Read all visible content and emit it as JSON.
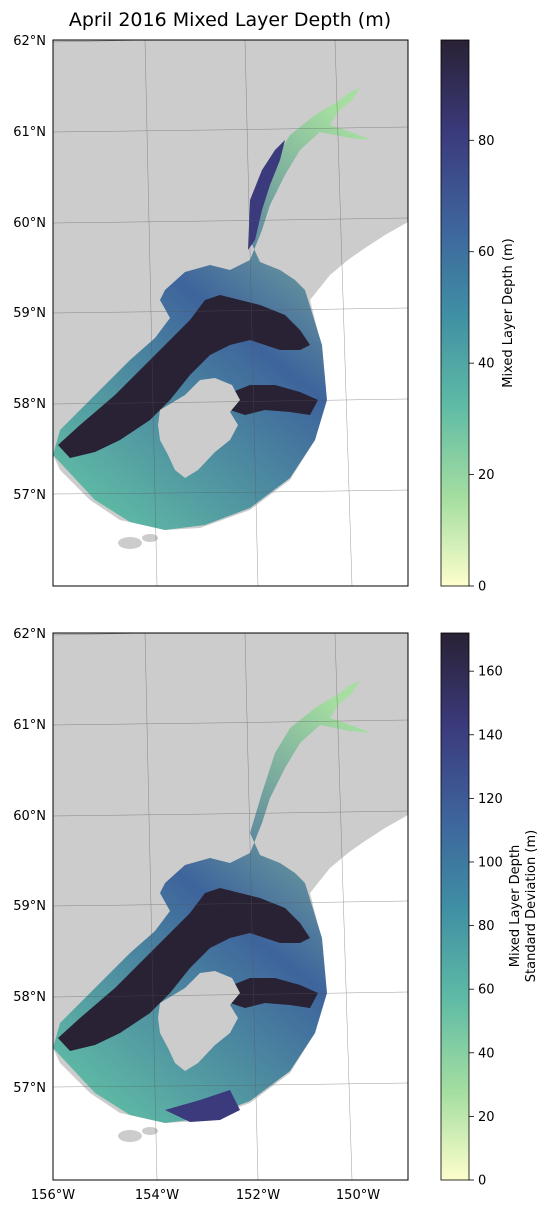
{
  "title": "April 2016 Mixed Layer Depth (m)",
  "colors": {
    "land": "#cccccc",
    "cmap": [
      "#fdfecc",
      "#a5dea0",
      "#5fbba5",
      "#3f8ea4",
      "#3e649c",
      "#3b3a7c",
      "#292134"
    ]
  },
  "lat_ticks": [
    "62°N",
    "61°N",
    "60°N",
    "59°N",
    "58°N",
    "57°N"
  ],
  "lon_ticks": [
    "156°W",
    "154°W",
    "152°W",
    "150°W"
  ],
  "panels": [
    {
      "name": "mean",
      "colorbar": {
        "label_lines": [
          "Mixed Layer Depth (m)"
        ],
        "min": 0,
        "max": 98,
        "ticks": [
          0,
          20,
          40,
          60,
          80
        ]
      }
    },
    {
      "name": "stddev",
      "colorbar": {
        "label_lines": [
          "Mixed Layer Depth",
          "Standard Deviation (m)"
        ],
        "min": 0,
        "max": 172,
        "ticks": [
          0,
          20,
          40,
          60,
          80,
          100,
          120,
          140,
          160
        ]
      }
    }
  ]
}
